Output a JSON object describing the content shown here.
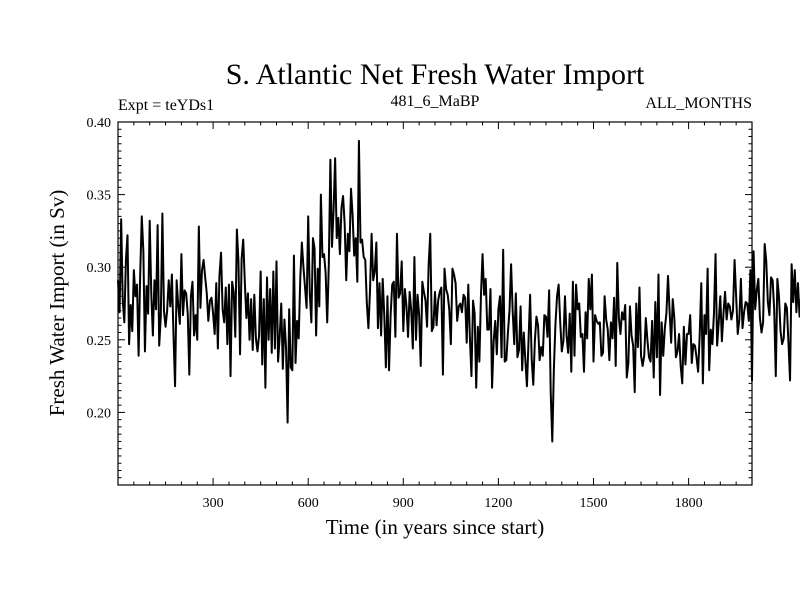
{
  "chart_data": {
    "type": "line",
    "title": "S. Atlantic Net Fresh Water Import",
    "subtitle_left": "Expt = teYDs1",
    "subtitle_center": "481_6_MaBP",
    "subtitle_right": "ALL_MONTHS",
    "xlabel": "Time (in years since start)",
    "ylabel": "Fresh Water Import (in Sv)",
    "xlim": [
      0,
      2000
    ],
    "ylim": [
      0.15,
      0.4
    ],
    "xticks": [
      300,
      600,
      900,
      1200,
      1500,
      1800
    ],
    "xtick_labels": [
      "300",
      "600",
      "900",
      "1200",
      "1500",
      "1800"
    ],
    "yticks": [
      0.2,
      0.25,
      0.3,
      0.35,
      0.4
    ],
    "ytick_labels": [
      "0.20",
      "0.25",
      "0.30",
      "0.35",
      "0.40"
    ],
    "grid": false,
    "series": [
      {
        "name": "Fresh Water Import",
        "x_start": 0,
        "x_step": 5,
        "line_color": "#000000",
        "values": [
          0.291,
          0.269,
          0.333,
          0.277,
          0.262,
          0.305,
          0.322,
          0.247,
          0.274,
          0.256,
          0.298,
          0.28,
          0.288,
          0.239,
          0.295,
          0.335,
          0.311,
          0.242,
          0.287,
          0.268,
          0.332,
          0.282,
          0.253,
          0.291,
          0.271,
          0.329,
          0.246,
          0.266,
          0.337,
          0.27,
          0.259,
          0.27,
          0.291,
          0.273,
          0.295,
          0.254,
          0.218,
          0.291,
          0.274,
          0.261,
          0.309,
          0.267,
          0.284,
          0.282,
          0.268,
          0.226,
          0.28,
          0.29,
          0.253,
          0.267,
          0.25,
          0.328,
          0.272,
          0.298,
          0.305,
          0.293,
          0.282,
          0.263,
          0.277,
          0.279,
          0.268,
          0.254,
          0.289,
          0.244,
          0.294,
          0.31,
          0.271,
          0.262,
          0.286,
          0.247,
          0.288,
          0.225,
          0.29,
          0.283,
          0.252,
          0.326,
          0.304,
          0.24,
          0.306,
          0.319,
          0.29,
          0.265,
          0.282,
          0.25,
          0.278,
          0.243,
          0.281,
          0.251,
          0.242,
          0.253,
          0.297,
          0.233,
          0.278,
          0.217,
          0.293,
          0.25,
          0.285,
          0.241,
          0.297,
          0.244,
          0.304,
          0.235,
          0.252,
          0.275,
          0.23,
          0.264,
          0.245,
          0.193,
          0.271,
          0.231,
          0.229,
          0.308,
          0.234,
          0.263,
          0.251,
          0.292,
          0.317,
          0.3,
          0.286,
          0.272,
          0.335,
          0.282,
          0.262,
          0.32,
          0.313,
          0.253,
          0.299,
          0.273,
          0.35,
          0.307,
          0.309,
          0.296,
          0.262,
          0.302,
          0.374,
          0.314,
          0.339,
          0.375,
          0.32,
          0.334,
          0.309,
          0.341,
          0.349,
          0.33,
          0.291,
          0.323,
          0.311,
          0.354,
          0.336,
          0.308,
          0.32,
          0.29,
          0.387,
          0.317,
          0.319,
          0.307,
          0.305,
          0.275,
          0.258,
          0.284,
          0.323,
          0.291,
          0.297,
          0.317,
          0.258,
          0.289,
          0.253,
          0.292,
          0.267,
          0.231,
          0.28,
          0.229,
          0.267,
          0.288,
          0.29,
          0.252,
          0.323,
          0.279,
          0.282,
          0.304,
          0.256,
          0.285,
          0.273,
          0.252,
          0.283,
          0.27,
          0.244,
          0.307,
          0.25,
          0.281,
          0.267,
          0.232,
          0.29,
          0.283,
          0.277,
          0.259,
          0.302,
          0.323,
          0.256,
          0.259,
          0.283,
          0.26,
          0.277,
          0.283,
          0.286,
          0.226,
          0.299,
          0.285,
          0.281,
          0.271,
          0.247,
          0.299,
          0.295,
          0.289,
          0.263,
          0.273,
          0.275,
          0.269,
          0.281,
          0.279,
          0.248,
          0.288,
          0.252,
          0.225,
          0.277,
          0.268,
          0.217,
          0.259,
          0.235,
          0.281,
          0.309,
          0.281,
          0.292,
          0.257,
          0.257,
          0.285,
          0.217,
          0.249,
          0.263,
          0.24,
          0.271,
          0.28,
          0.238,
          0.312,
          0.235,
          0.236,
          0.255,
          0.27,
          0.302,
          0.27,
          0.247,
          0.282,
          0.238,
          0.243,
          0.273,
          0.229,
          0.255,
          0.236,
          0.218,
          0.249,
          0.281,
          0.237,
          0.219,
          0.249,
          0.266,
          0.26,
          0.236,
          0.245,
          0.239,
          0.267,
          0.266,
          0.252,
          0.284,
          0.214,
          0.18,
          0.23,
          0.261,
          0.28,
          0.288,
          0.262,
          0.242,
          0.249,
          0.28,
          0.253,
          0.241,
          0.268,
          0.228,
          0.29,
          0.239,
          0.288,
          0.271,
          0.275,
          0.252,
          0.254,
          0.228,
          0.269,
          0.251,
          0.292,
          0.271,
          0.295,
          0.235,
          0.267,
          0.263,
          0.261,
          0.262,
          0.239,
          0.241,
          0.28,
          0.264,
          0.257,
          0.236,
          0.262,
          0.251,
          0.279,
          0.232,
          0.303,
          0.265,
          0.254,
          0.269,
          0.264,
          0.274,
          0.224,
          0.234,
          0.273,
          0.253,
          0.246,
          0.214,
          0.275,
          0.245,
          0.286,
          0.239,
          0.232,
          0.239,
          0.265,
          0.25,
          0.238,
          0.235,
          0.263,
          0.224,
          0.276,
          0.238,
          0.295,
          0.212,
          0.262,
          0.239,
          0.258,
          0.268,
          0.294,
          0.27,
          0.248,
          0.278,
          0.265,
          0.238,
          0.242,
          0.254,
          0.232,
          0.22,
          0.259,
          0.233,
          0.254,
          0.254,
          0.267,
          0.234,
          0.247,
          0.246,
          0.238,
          0.228,
          0.253,
          0.289,
          0.22,
          0.267,
          0.254,
          0.299,
          0.229,
          0.257,
          0.247,
          0.268,
          0.309,
          0.246,
          0.262,
          0.28,
          0.249,
          0.268,
          0.283,
          0.264,
          0.275,
          0.273,
          0.264,
          0.27,
          0.305,
          0.28,
          0.254,
          0.264,
          0.292,
          0.258,
          0.269,
          0.276,
          0.275,
          0.263,
          0.298,
          0.222,
          0.311,
          0.271,
          0.284,
          0.292,
          0.265,
          0.255,
          0.262,
          0.316,
          0.304,
          0.276,
          0.267,
          0.293,
          0.291,
          0.271,
          0.225,
          0.292,
          0.28,
          0.256,
          0.247,
          0.251,
          0.275,
          0.272,
          0.248,
          0.222,
          0.302,
          0.276,
          0.298,
          0.269,
          0.289,
          0.266,
          0.28,
          0.247,
          0.24,
          0.291,
          0.288,
          0.262,
          0.3,
          0.257,
          0.271,
          0.264,
          0.253,
          0.29,
          0.276,
          0.297,
          0.256,
          0.314,
          0.284,
          0.331,
          0.295,
          0.294,
          0.312,
          0.279,
          0.322,
          0.283,
          0.244,
          0.284,
          0.297,
          0.281,
          0.265,
          0.292,
          0.286,
          0.262,
          0.283,
          0.262,
          0.307,
          0.285,
          0.296,
          0.285,
          0.281,
          0.292,
          0.258,
          0.27,
          0.284,
          0.28,
          0.269,
          0.281,
          0.264,
          0.27,
          0.293,
          0.272,
          0.258,
          0.291,
          0.288,
          0.264,
          0.293,
          0.307,
          0.284,
          0.296,
          0.245,
          0.28,
          0.251,
          0.281,
          0.251,
          0.298,
          0.262,
          0.3,
          0.311,
          0.271,
          0.281,
          0.276,
          0.262,
          0.299,
          0.278,
          0.269,
          0.244,
          0.257,
          0.28,
          0.277,
          0.24,
          0.298,
          0.268,
          0.251,
          0.249,
          0.258,
          0.278,
          0.268,
          0.241,
          0.291,
          0.281,
          0.24,
          0.288,
          0.273,
          0.244,
          0.281,
          0.307,
          0.254,
          0.29,
          0.282,
          0.295,
          0.276,
          0.25,
          0.307,
          0.32,
          0.325,
          0.298,
          0.289,
          0.314,
          0.295,
          0.319,
          0.296,
          0.337,
          0.328,
          0.319,
          0.315,
          0.316,
          0.267,
          0.306,
          0.32,
          0.293,
          0.297,
          0.308,
          0.293,
          0.356,
          0.286,
          0.275,
          0.294,
          0.326,
          0.29,
          0.348,
          0.335,
          0.301,
          0.293,
          0.294,
          0.317,
          0.27,
          0.258,
          0.312,
          0.312,
          0.295,
          0.292,
          0.336,
          0.284,
          0.289,
          0.261,
          0.301,
          0.265,
          0.299,
          0.288,
          0.225,
          0.269,
          0.233,
          0.306,
          0.277,
          0.271,
          0.281,
          0.3,
          0.26,
          0.264,
          0.278,
          0.305,
          0.271,
          0.231,
          0.265,
          0.264,
          0.235,
          0.294,
          0.27,
          0.282,
          0.253,
          0.261,
          0.293,
          0.28,
          0.259,
          0.263,
          0.284,
          0.223,
          0.268,
          0.262,
          0.25,
          0.259,
          0.26,
          0.226,
          0.279,
          0.22,
          0.265,
          0.256,
          0.235
        ]
      }
    ]
  }
}
